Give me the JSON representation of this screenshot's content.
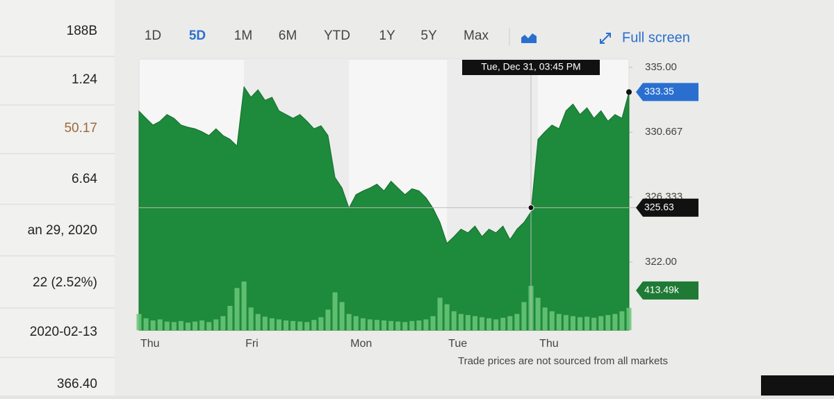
{
  "sidebar": [
    "188B",
    "1.24",
    "50.17",
    "6.64",
    "an 29, 2020",
    "22 (2.52%)",
    "2020-02-13",
    "366.40"
  ],
  "toolbar": {
    "ranges": [
      "1D",
      "5D",
      "1M",
      "6M",
      "YTD",
      "1Y",
      "5Y",
      "Max"
    ],
    "active": "5D",
    "full_screen": "Full screen"
  },
  "footer": "Trade prices are not sourced from all markets",
  "chart_data": {
    "type": "area",
    "categories": [
      "Thu",
      null,
      null,
      null,
      null,
      null,
      null,
      null,
      null,
      null,
      null,
      null,
      null,
      null,
      null,
      "Fri",
      null,
      null,
      null,
      null,
      null,
      null,
      null,
      null,
      null,
      null,
      null,
      null,
      null,
      null,
      "Mon",
      null,
      null,
      null,
      null,
      null,
      null,
      null,
      null,
      null,
      null,
      null,
      null,
      null,
      "Tue",
      null,
      null,
      null,
      null,
      null,
      null,
      null,
      null,
      null,
      null,
      null,
      null,
      "Thu",
      null,
      null,
      null,
      null,
      null,
      null,
      null,
      null,
      null,
      null,
      null,
      null,
      null
    ],
    "series": [
      {
        "color": "#1e8a3c",
        "values": [
          332.08,
          331.6,
          331.15,
          331.4,
          331.85,
          331.6,
          331.15,
          331.0,
          330.9,
          330.7,
          330.45,
          330.9,
          330.45,
          330.2,
          329.75,
          333.7,
          333.0,
          333.5,
          332.8,
          333.0,
          332.1,
          331.85,
          331.6,
          331.85,
          331.4,
          330.9,
          331.1,
          330.45,
          327.65,
          326.95,
          325.6,
          326.5,
          326.75,
          326.95,
          327.2,
          326.75,
          327.4,
          326.95,
          326.5,
          326.9,
          326.75,
          326.3,
          325.6,
          324.65,
          323.25,
          323.7,
          324.2,
          323.95,
          324.4,
          323.7,
          324.2,
          323.95,
          324.4,
          323.5,
          324.2,
          324.65,
          325.35,
          330.2,
          330.7,
          331.15,
          330.9,
          332.1,
          332.55,
          331.85,
          332.3,
          331.6,
          332.1,
          331.4,
          331.85,
          331.6,
          333.35
        ]
      }
    ],
    "volume": {
      "color": "#6cc77a",
      "values": [
        300,
        220,
        180,
        200,
        160,
        150,
        170,
        140,
        160,
        180,
        150,
        200,
        260,
        450,
        780,
        900,
        420,
        300,
        250,
        220,
        200,
        180,
        170,
        160,
        150,
        190,
        240,
        380,
        700,
        520,
        300,
        260,
        220,
        200,
        190,
        180,
        170,
        160,
        150,
        170,
        180,
        200,
        260,
        600,
        480,
        350,
        300,
        280,
        260,
        240,
        220,
        200,
        230,
        260,
        300,
        520,
        820,
        600,
        420,
        350,
        300,
        280,
        260,
        240,
        250,
        230,
        260,
        280,
        300,
        350,
        413.49
      ]
    },
    "ylim": [
      317.45,
      335.55
    ],
    "yticks": [
      {
        "value": 322,
        "label": "322.00"
      },
      {
        "value": 326.333,
        "label": "326.333"
      },
      330.667,
      {
        "value": 335,
        "label": "335.00"
      }
    ],
    "current_price": 333.35,
    "crosshair_price": 325.63,
    "current_volume": {
      "value": 413.49,
      "label": "413.49k"
    },
    "tooltip": "Tue, Dec 31, 03:45 PM"
  }
}
